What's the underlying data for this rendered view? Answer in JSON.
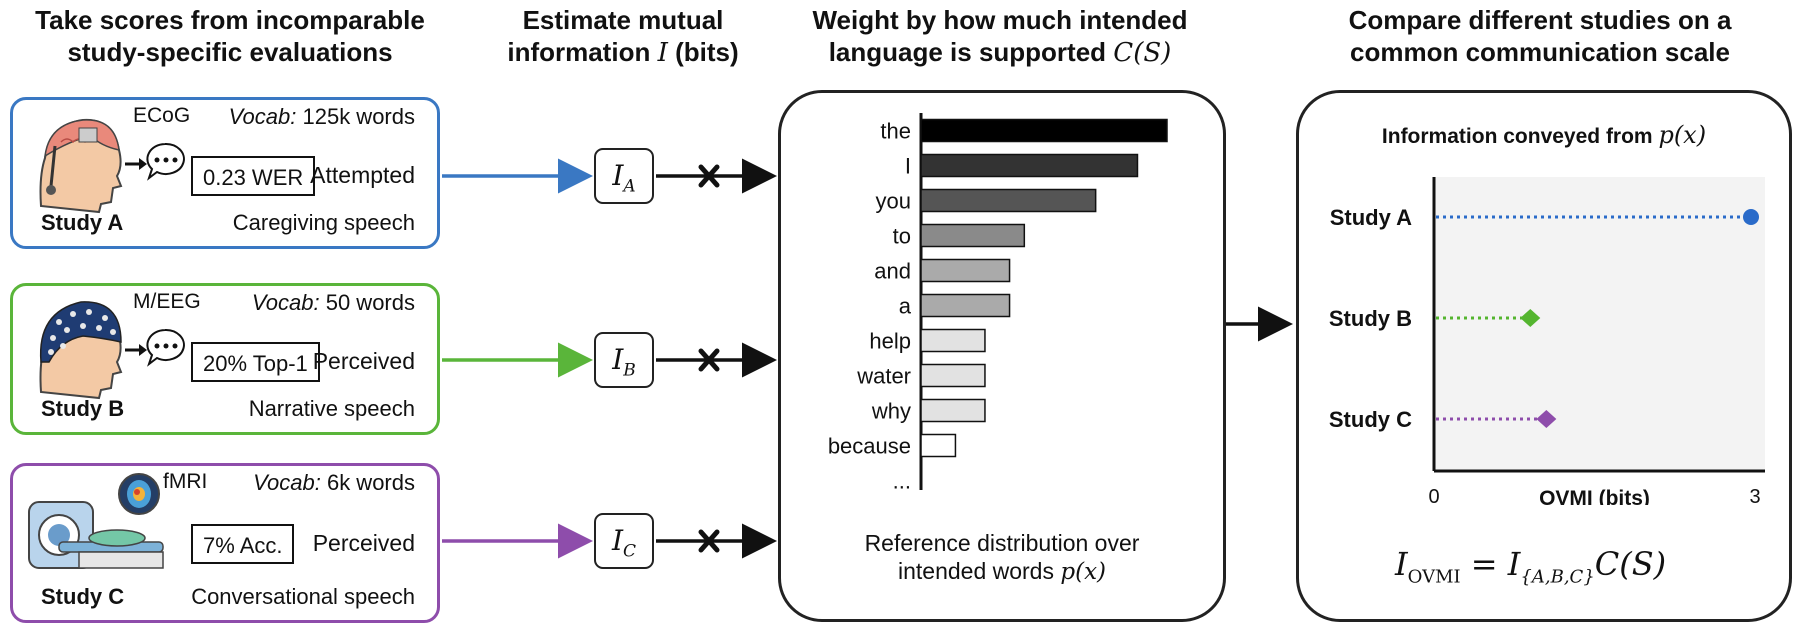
{
  "headers": {
    "col1": [
      "Take scores from incomparable",
      "study-specific evaluations"
    ],
    "col2_line1": "Estimate mutual",
    "col2_line2": "information",
    "col2_var": "I",
    "col2_unit": "(bits)",
    "col3_line1": "Weight by how much intended",
    "col3_line2": "language is supported",
    "col3_var": "C(S)",
    "col4": [
      "Compare different studies on a",
      "common communication scale"
    ]
  },
  "studies": [
    {
      "study": "Study A",
      "device": "ECoG",
      "vocab_label": "Vocab:",
      "vocab_value": "125k words",
      "metric": "0.23 WER",
      "mode": "Attempted",
      "speech": "Caregiving speech",
      "color": "#3a78c3",
      "info_var": "I",
      "info_sub": "A"
    },
    {
      "study": "Study B",
      "device": "M/EEG",
      "vocab_label": "Vocab:",
      "vocab_value": "50 words",
      "metric": "20% Top-1",
      "mode": "Perceived",
      "speech": "Narrative speech",
      "color": "#5ab53a",
      "info_var": "I",
      "info_sub": "B"
    },
    {
      "study": "Study C",
      "device": "fMRI",
      "vocab_label": "Vocab:",
      "vocab_value": "6k words",
      "metric": "7% Acc.",
      "mode": "Perceived",
      "speech": "Conversational speech",
      "color": "#8e4dab",
      "info_var": "I",
      "info_sub": "C"
    }
  ],
  "distribution": {
    "words": [
      "the",
      "I",
      "you",
      "to",
      "and",
      "a",
      "help",
      "water",
      "why",
      "because",
      "..."
    ],
    "values": [
      1.0,
      0.88,
      0.71,
      0.42,
      0.36,
      0.36,
      0.26,
      0.26,
      0.26,
      0.14,
      null
    ],
    "fills": [
      "#000000",
      "#333333",
      "#555555",
      "#8a8a8a",
      "#aaaaaa",
      "#aaaaaa",
      "#e2e2e2",
      "#e2e2e2",
      "#e2e2e2",
      "#ffffff",
      null
    ],
    "caption_line1": "Reference distribution over",
    "caption_line2": "intended words",
    "caption_var": "p(x)"
  },
  "comparison": {
    "title": "Information conveyed from",
    "title_var": "p(x)",
    "xlabel": "OVMI (bits)",
    "xmin_label": "0",
    "xmax_label": "3",
    "xlim": [
      0,
      3
    ],
    "points": [
      {
        "study": "Study A",
        "value": 3.0,
        "marker": "circle",
        "color": "#2a6bc9"
      },
      {
        "study": "Study B",
        "value": 0.9,
        "marker": "diamond",
        "color": "#54b52f"
      },
      {
        "study": "Study C",
        "value": 1.05,
        "marker": "diamond",
        "color": "#8e4dab"
      }
    ],
    "formula_lhs_var": "I",
    "formula_lhs_sub": "OVMI",
    "formula_eq": "=",
    "formula_rhs_var": "I",
    "formula_rhs_sub": "{A,B,C}",
    "formula_rhs_tail": "C(S)"
  }
}
